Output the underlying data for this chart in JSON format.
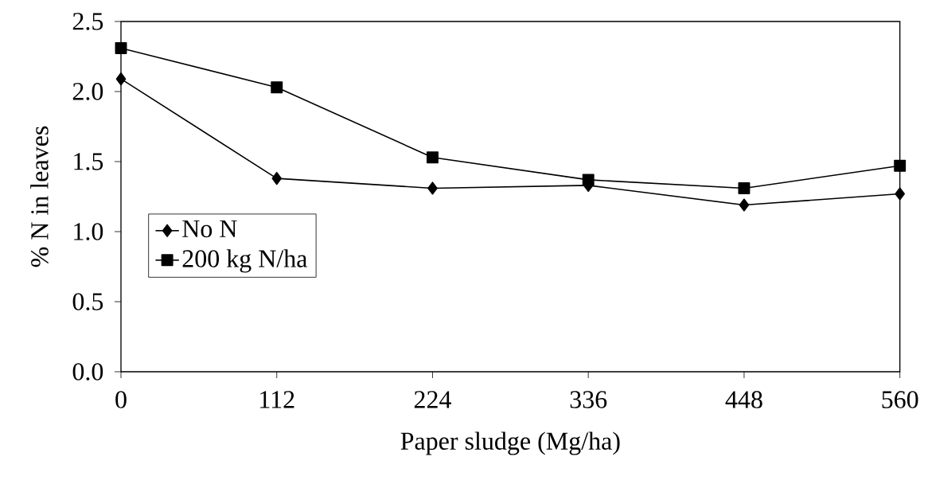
{
  "chart_data": {
    "type": "line",
    "xlabel": "Paper sludge (Mg/ha)",
    "ylabel": "% N in leaves",
    "x": [
      0,
      112,
      224,
      336,
      448,
      560
    ],
    "series": [
      {
        "name": "No N",
        "color": "#000000",
        "marker": "diamond",
        "values": [
          2.09,
          1.38,
          1.31,
          1.33,
          1.19,
          1.27
        ]
      },
      {
        "name": "200 kg N/ha",
        "color": "#000000",
        "marker": "square",
        "values": [
          2.31,
          2.03,
          1.53,
          1.37,
          1.31,
          1.47
        ]
      }
    ],
    "xlim": [
      0,
      560
    ],
    "xticks": [
      0,
      112,
      224,
      336,
      448,
      560
    ],
    "ylim": [
      0,
      2.5
    ],
    "yticks": [
      {
        "value": 0,
        "label": "0.0"
      },
      {
        "value": 0.5,
        "label": "0.5"
      },
      {
        "value": 1,
        "label": "1.0"
      },
      {
        "value": 1.5,
        "label": "1.5"
      },
      {
        "value": 2,
        "label": "2.0"
      },
      {
        "value": 2.5,
        "label": "2.5"
      }
    ],
    "grid": false,
    "legend": "left",
    "line_style": "solid"
  }
}
